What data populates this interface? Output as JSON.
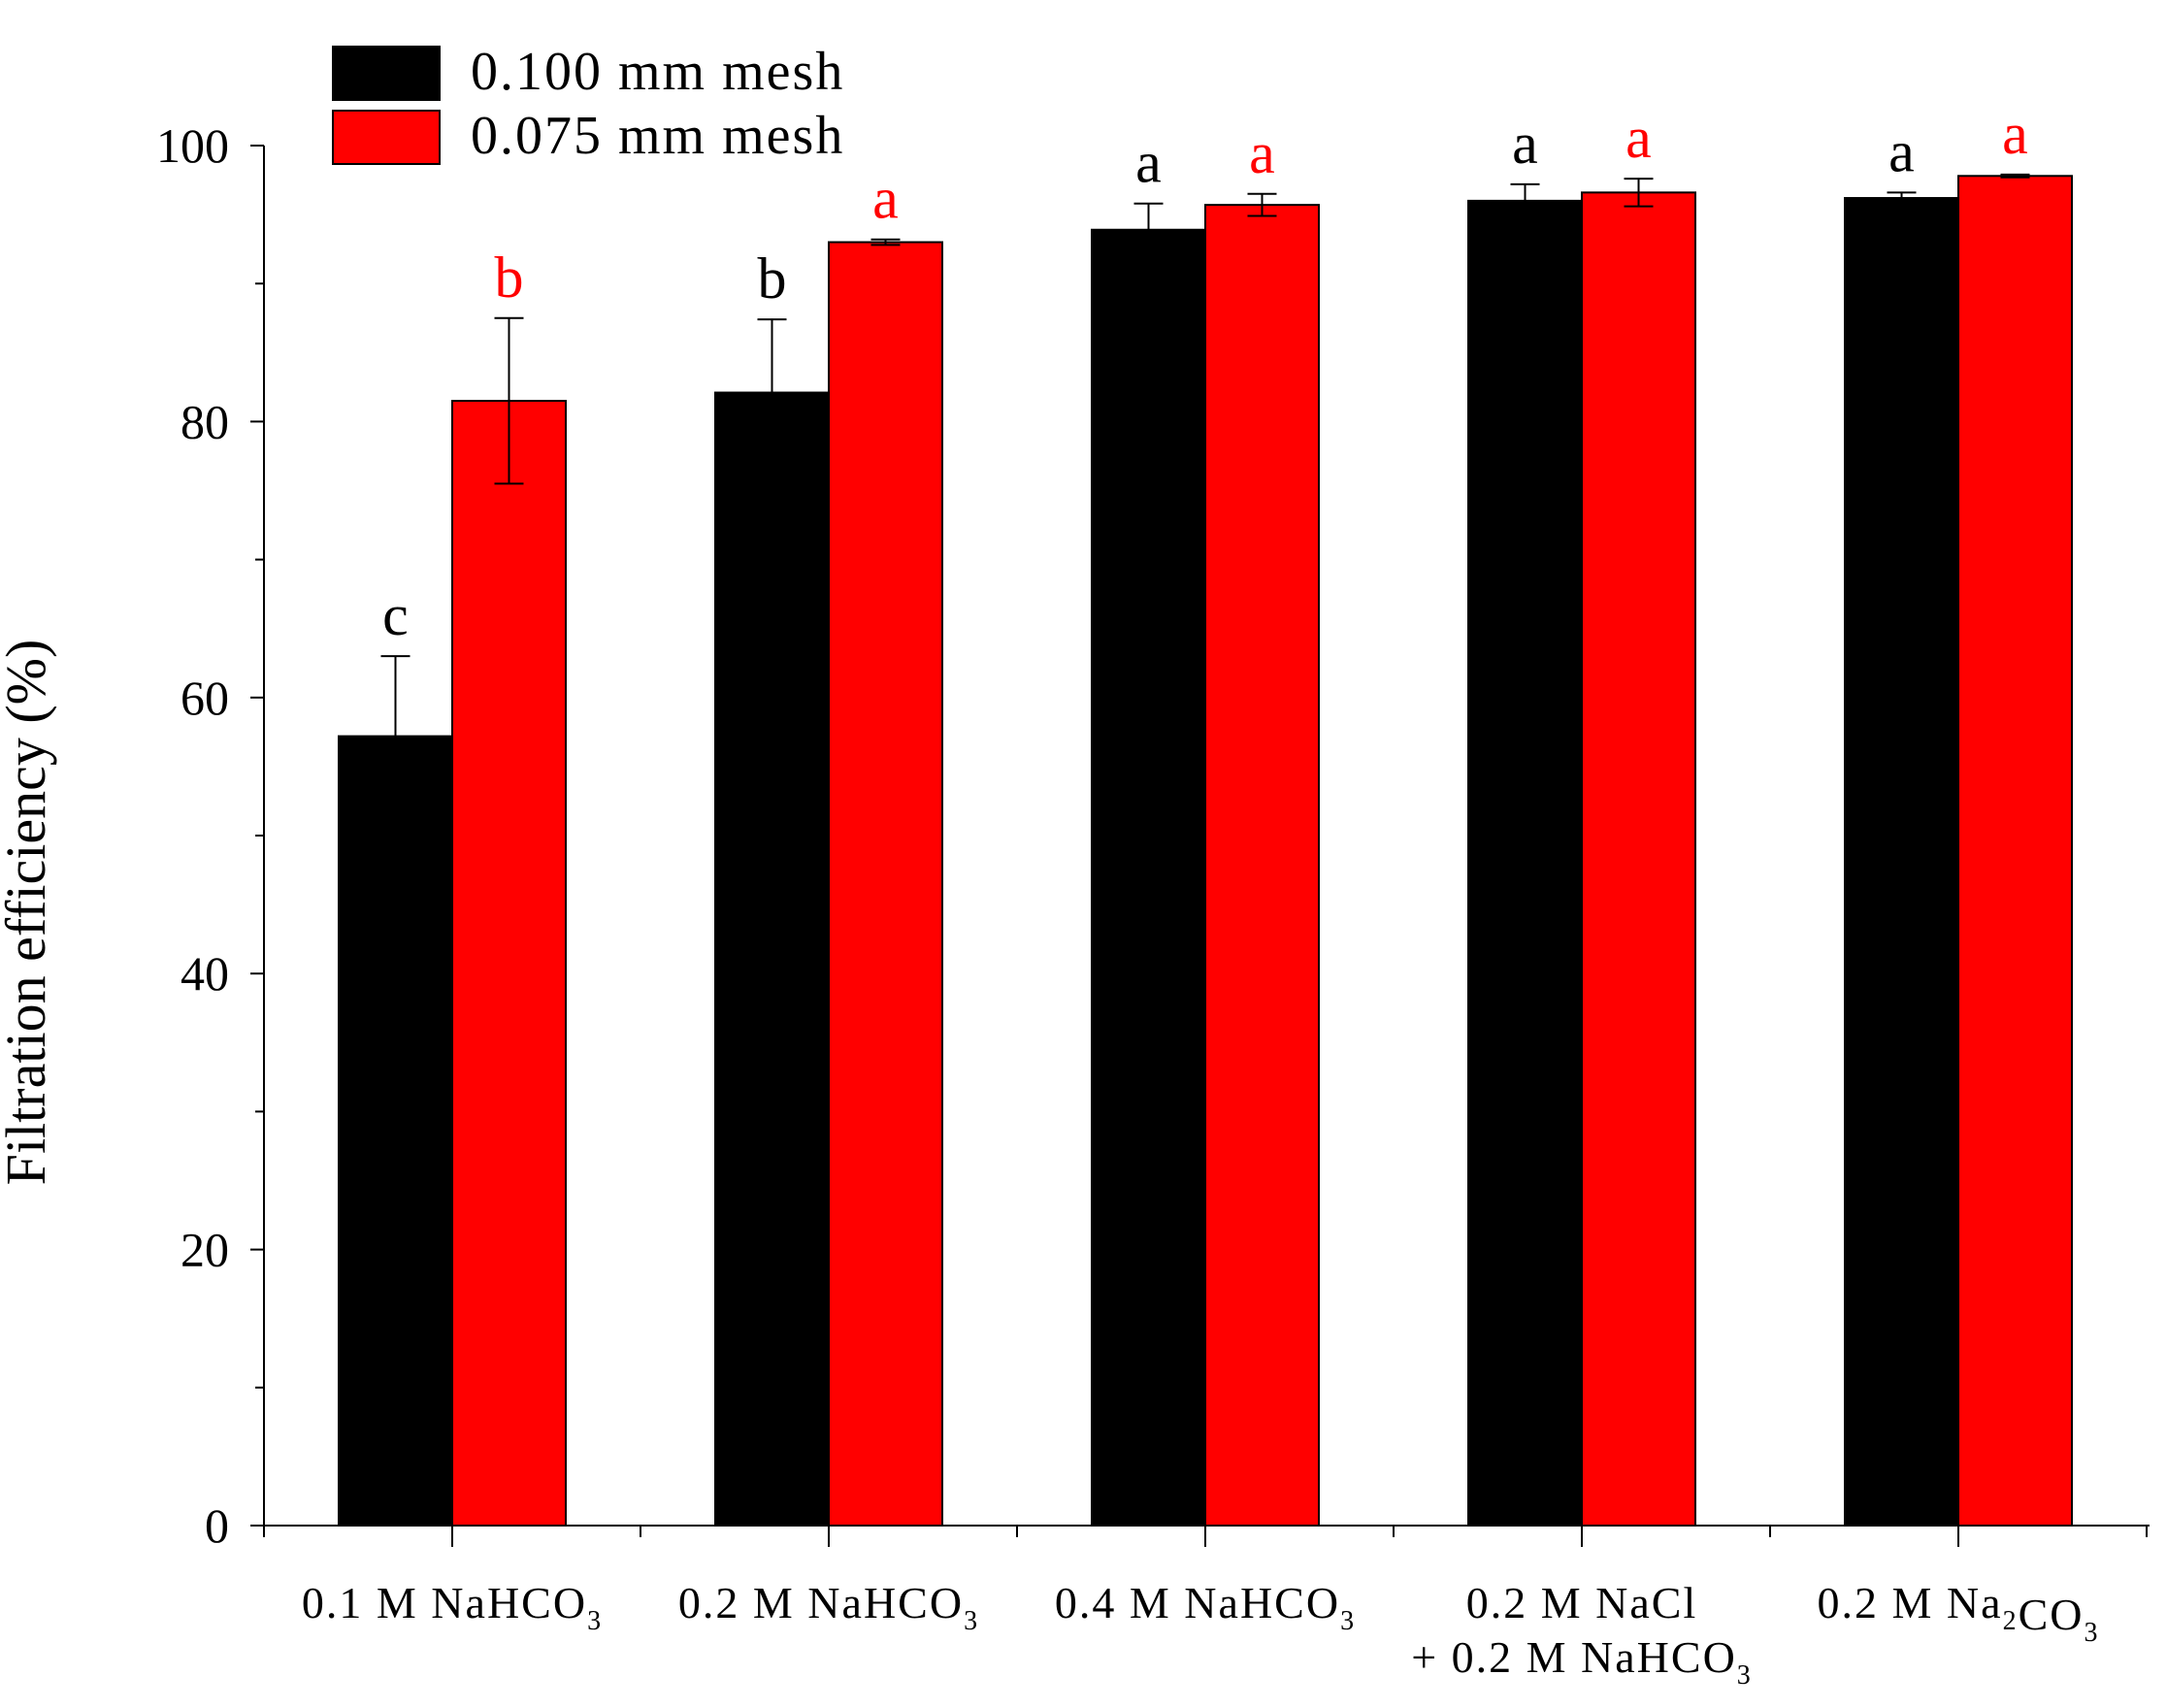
{
  "chart_data": {
    "type": "bar",
    "title": "",
    "xlabel": "",
    "ylabel": "Filtration efficiency (%)",
    "ylim": [
      0,
      100
    ],
    "y_ticks": [
      0,
      20,
      40,
      60,
      80,
      100
    ],
    "y_tick_labels": [
      "0",
      "20",
      "40",
      "60",
      "80",
      "100"
    ],
    "y_minor_step": 10,
    "grid": false,
    "legend_position": "top-left",
    "categories": [
      {
        "lines": [
          [
            {
              "t": "0.1 M NaHCO"
            },
            {
              "t": "3",
              "sub": true
            }
          ]
        ]
      },
      {
        "lines": [
          [
            {
              "t": "0.2 M NaHCO"
            },
            {
              "t": "3",
              "sub": true
            }
          ]
        ]
      },
      {
        "lines": [
          [
            {
              "t": "0.4 M NaHCO"
            },
            {
              "t": "3",
              "sub": true
            }
          ]
        ]
      },
      {
        "lines": [
          [
            {
              "t": "0.2 M NaCl"
            }
          ],
          [
            {
              "t": "+ 0.2 M NaHCO"
            },
            {
              "t": "3",
              "sub": true
            }
          ]
        ]
      },
      {
        "lines": [
          [
            {
              "t": "0.2 M Na"
            },
            {
              "t": "2",
              "sub": true
            },
            {
              "t": "CO"
            },
            {
              "t": "3",
              "sub": true
            }
          ]
        ]
      }
    ],
    "series": [
      {
        "name": "0.100 mm mesh",
        "color": "#000000",
        "label_color": "#000000",
        "values": [
          57.2,
          82.1,
          93.9,
          96.0,
          96.2
        ],
        "errors": [
          5.8,
          5.3,
          1.9,
          1.2,
          0.4
        ],
        "letters": [
          "c",
          "b",
          "a",
          "a",
          "a"
        ]
      },
      {
        "name": "0.075 mm mesh",
        "color": "#ff0000",
        "label_color": "#ff0000",
        "values": [
          81.5,
          93.0,
          95.7,
          96.6,
          97.8
        ],
        "errors": [
          6.0,
          0.2,
          0.8,
          1.0,
          0.1
        ],
        "letters": [
          "b",
          "a",
          "a",
          "a",
          "a"
        ]
      }
    ]
  }
}
